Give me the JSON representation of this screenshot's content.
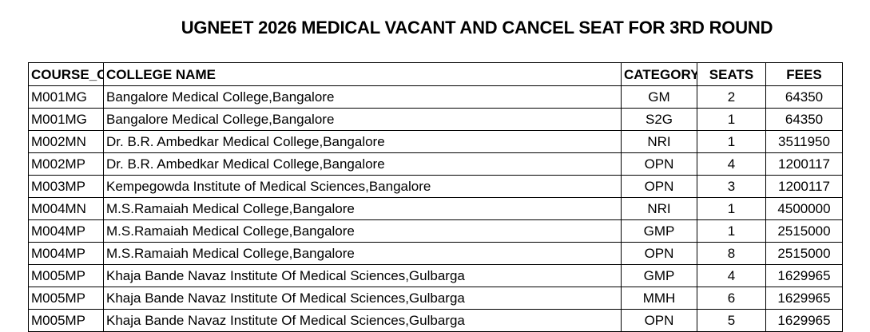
{
  "title": "UGNEET 2026 MEDICAL VACANT AND CANCEL SEAT FOR 3RD ROUND",
  "table": {
    "header": [
      "COURSE_C",
      "COLLEGE NAME",
      "CATEGORY",
      "SEATS",
      "FEES"
    ],
    "rows": [
      [
        "M001MG",
        "Bangalore Medical College,Bangalore",
        "GM",
        "2",
        "64350"
      ],
      [
        "M001MG",
        "Bangalore Medical College,Bangalore",
        "S2G",
        "1",
        "64350"
      ],
      [
        "M002MN",
        "Dr. B.R. Ambedkar Medical College,Bangalore",
        "NRI",
        "1",
        "3511950"
      ],
      [
        "M002MP",
        "Dr. B.R. Ambedkar Medical College,Bangalore",
        "OPN",
        "4",
        "1200117"
      ],
      [
        "M003MP",
        "Kempegowda Institute of Medical Sciences,Bangalore",
        "OPN",
        "3",
        "1200117"
      ],
      [
        "M004MN",
        "M.S.Ramaiah Medical College,Bangalore",
        "NRI",
        "1",
        "4500000"
      ],
      [
        "M004MP",
        "M.S.Ramaiah Medical College,Bangalore",
        "GMP",
        "1",
        "2515000"
      ],
      [
        "M004MP",
        "M.S.Ramaiah Medical College,Bangalore",
        "OPN",
        "8",
        "2515000"
      ],
      [
        "M005MP",
        "Khaja Bande Navaz Institute Of Medical Sciences,Gulbarga",
        "GMP",
        "4",
        "1629965"
      ],
      [
        "M005MP",
        "Khaja Bande Navaz Institute Of Medical Sciences,Gulbarga",
        "MMH",
        "6",
        "1629965"
      ],
      [
        "M005MP",
        "Khaja Bande Navaz Institute Of Medical Sciences,Gulbarga",
        "OPN",
        "5",
        "1629965"
      ]
    ]
  }
}
